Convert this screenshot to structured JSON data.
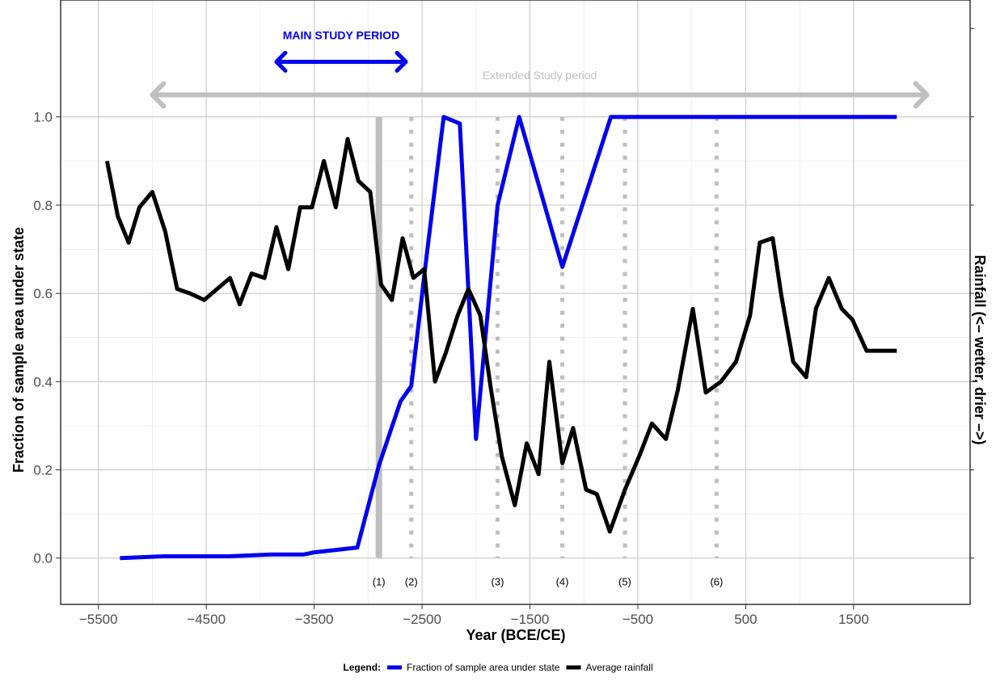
{
  "chart_data": {
    "type": "line",
    "xlabel": "Year (BCE/CE)",
    "ylabel": "Fraction of sample area under state",
    "y2label": "Rainfall (<– wetter, drier –>)",
    "xlim": [
      -5850,
      2580
    ],
    "ylim": [
      -0.105,
      1.265
    ],
    "x_ticks": [
      -5500,
      -4500,
      -3500,
      -2500,
      -1500,
      -500,
      500,
      1500
    ],
    "x_tick_labels": [
      "−5500",
      "−4500",
      "−3500",
      "−2500",
      "−1500",
      "−500",
      "500",
      "1500"
    ],
    "y_ticks": [
      0,
      0.2,
      0.4,
      0.6,
      0.8,
      1.0
    ],
    "y_tick_labels": [
      "0.0",
      "0.2",
      "0.4",
      "0.6",
      "0.8",
      "1.0"
    ],
    "grid": true,
    "legend_position": "bottom",
    "legend": {
      "title": "Legend:",
      "entries": [
        {
          "label": "Fraction of sample area under state",
          "color": "#0000ee"
        },
        {
          "label": "Average rainfall",
          "color": "#000000"
        }
      ]
    },
    "series": [
      {
        "name": "Fraction of sample area under state",
        "color": "#0000ee",
        "x": [
          -5300,
          -4900,
          -4300,
          -3900,
          -3600,
          -3500,
          -3100,
          -2900,
          -2700,
          -2600,
          -2450,
          -2300,
          -2150,
          -2000,
          -1800,
          -1600,
          -1200,
          -750,
          1900
        ],
        "y": [
          0.0,
          0.004,
          0.004,
          0.008,
          0.008,
          0.013,
          0.024,
          0.21,
          0.355,
          0.39,
          0.7,
          1.0,
          0.985,
          0.27,
          0.8,
          1.0,
          0.66,
          1.0,
          1.0
        ]
      },
      {
        "name": "Average rainfall",
        "color": "#000000",
        "x": [
          -5420,
          -5320,
          -5220,
          -5120,
          -5000,
          -4880,
          -4770,
          -4650,
          -4520,
          -4280,
          -4190,
          -4080,
          -3960,
          -3850,
          -3740,
          -3630,
          -3520,
          -3410,
          -3300,
          -3190,
          -3090,
          -2980,
          -2880,
          -2780,
          -2680,
          -2580,
          -2480,
          -2380,
          -2280,
          -2170,
          -2070,
          -1960,
          -1860,
          -1760,
          -1640,
          -1530,
          -1420,
          -1320,
          -1200,
          -1100,
          -980,
          -880,
          -760,
          -620,
          -480,
          -370,
          -240,
          -130,
          10,
          130,
          270,
          410,
          540,
          630,
          750,
          830,
          940,
          1060,
          1150,
          1270,
          1390,
          1490,
          1620,
          1750,
          1850,
          1900
        ],
        "y": [
          0.9,
          0.775,
          0.715,
          0.795,
          0.83,
          0.74,
          0.61,
          0.6,
          0.585,
          0.635,
          0.575,
          0.645,
          0.635,
          0.75,
          0.655,
          0.795,
          0.795,
          0.9,
          0.795,
          0.95,
          0.855,
          0.83,
          0.62,
          0.585,
          0.725,
          0.635,
          0.655,
          0.4,
          0.465,
          0.55,
          0.61,
          0.55,
          0.38,
          0.23,
          0.12,
          0.26,
          0.19,
          0.445,
          0.215,
          0.295,
          0.155,
          0.145,
          0.06,
          0.155,
          0.235,
          0.305,
          0.27,
          0.38,
          0.565,
          0.375,
          0.4,
          0.445,
          0.55,
          0.715,
          0.725,
          0.595,
          0.445,
          0.41,
          0.565,
          0.635,
          0.565,
          0.54,
          0.47,
          0.47,
          0.47,
          0.47
        ]
      }
    ],
    "event_lines": [
      {
        "x": -2900,
        "label": "(1)",
        "style": "solid"
      },
      {
        "x": -2600,
        "label": "(2)",
        "style": "dotted"
      },
      {
        "x": -1800,
        "label": "(3)",
        "style": "dotted"
      },
      {
        "x": -1200,
        "label": "(4)",
        "style": "dotted"
      },
      {
        "x": -620,
        "label": "(5)",
        "style": "dotted"
      },
      {
        "x": 230,
        "label": "(6)",
        "style": "dotted"
      }
    ],
    "annotations": {
      "main_study": {
        "label": "MAIN STUDY PERIOD",
        "x_from": -3850,
        "x_to": -2650,
        "y": 1.125,
        "label_y": 1.185,
        "color": "#0000ee"
      },
      "extended_study": {
        "label": "Extended Study period",
        "x_from": -5000,
        "x_to": 2180,
        "y": 1.05,
        "label_y": 1.095,
        "color": "#c0c0c0"
      }
    }
  }
}
